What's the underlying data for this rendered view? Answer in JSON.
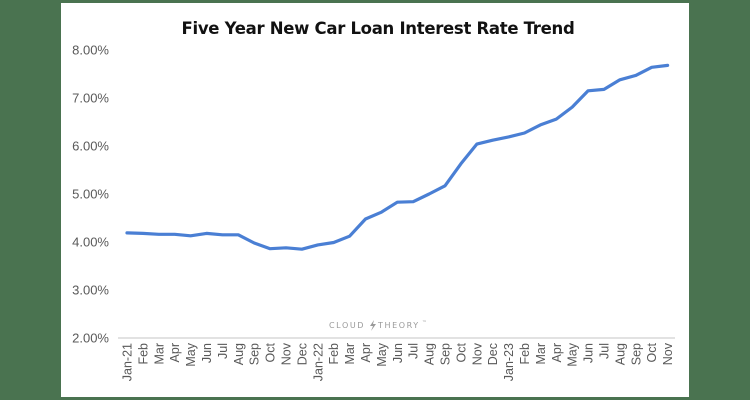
{
  "chart_data": {
    "type": "line",
    "title": "Five Year New Car Loan Interest Rate Trend",
    "xlabel": "",
    "ylabel": "",
    "ylim": [
      2.0,
      8.0
    ],
    "y_ticks": [
      "2.00%",
      "3.00%",
      "4.00%",
      "5.00%",
      "6.00%",
      "7.00%",
      "8.00%"
    ],
    "grid": false,
    "legend": null,
    "categories": [
      "Jan-21",
      "Feb",
      "Mar",
      "Apr",
      "May",
      "Jun",
      "Jul",
      "Aug",
      "Sep",
      "Oct",
      "Nov",
      "Dec",
      "Jan-22",
      "Feb",
      "Mar",
      "Apr",
      "May",
      "Jun",
      "Jul",
      "Aug",
      "Sep",
      "Oct",
      "Nov",
      "Dec",
      "Jan-23",
      "Feb",
      "Mar",
      "Apr",
      "May",
      "Jun",
      "Jul",
      "Aug",
      "Sep",
      "Oct",
      "Nov"
    ],
    "series": [
      {
        "name": "Five Year New Car Loan Interest Rate",
        "color": "#4a7fd4",
        "values": [
          4.19,
          4.18,
          4.16,
          4.16,
          4.13,
          4.18,
          4.15,
          4.15,
          3.98,
          3.86,
          3.88,
          3.85,
          3.94,
          3.99,
          4.12,
          4.48,
          4.62,
          4.83,
          4.84,
          5.0,
          5.17,
          5.63,
          6.04,
          6.12,
          6.19,
          6.27,
          6.44,
          6.56,
          6.81,
          7.15,
          7.18,
          7.38,
          7.47,
          7.64,
          7.68
        ]
      }
    ]
  },
  "watermark": {
    "left": "CLOUD",
    "right": "THEORY",
    "mark": "™"
  },
  "colors": {
    "line": "#4a7fd4",
    "axis": "#d9d9d9",
    "tick_text": "#595959",
    "title": "#111111",
    "outer_background": "#4a7350",
    "panel_background": "#ffffff"
  }
}
